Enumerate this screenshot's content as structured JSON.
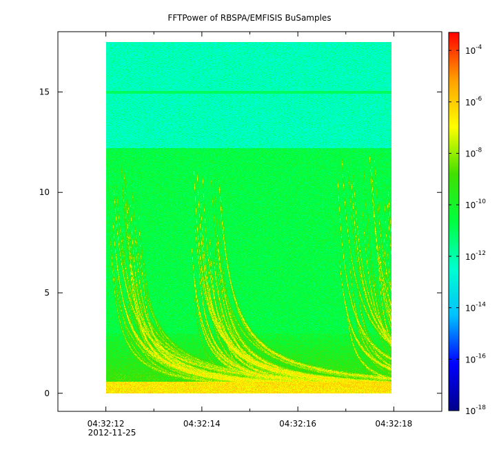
{
  "chart_data": {
    "type": "heatmap",
    "title": "FFTPower of RBSPA/EMFISIS  BuSamples",
    "xlabel": "",
    "ylabel": "",
    "x_ticks": [
      {
        "value": 0,
        "label": "04:32:12",
        "sublabel": "2012-11-25"
      },
      {
        "value": 2,
        "label": "04:32:14",
        "sublabel": ""
      },
      {
        "value": 4,
        "label": "04:32:16",
        "sublabel": ""
      },
      {
        "value": 6,
        "label": "04:32:18",
        "sublabel": ""
      }
    ],
    "x_minor_ticks": [
      -1,
      1,
      3,
      5,
      7
    ],
    "xlim": [
      -1,
      7
    ],
    "y_ticks": [
      0,
      5,
      10,
      15
    ],
    "ylim": [
      -0.9,
      18.0
    ],
    "data_extent": {
      "x": [
        0,
        5.95
      ],
      "y": [
        0,
        17.5
      ]
    },
    "colorbar": {
      "scale": "log",
      "range": [
        -18,
        -3.3
      ],
      "ticks": [
        {
          "exponent": -4,
          "base": "10",
          "exp_label": "-4"
        },
        {
          "exponent": -6,
          "base": "10",
          "exp_label": "-6"
        },
        {
          "exponent": -8,
          "base": "10",
          "exp_label": "-8"
        },
        {
          "exponent": -10,
          "base": "10",
          "exp_label": "-10"
        },
        {
          "exponent": -12,
          "base": "10",
          "exp_label": "-12"
        },
        {
          "exponent": -14,
          "base": "10",
          "exp_label": "-14"
        },
        {
          "exponent": -16,
          "base": "10",
          "exp_label": "-16"
        },
        {
          "exponent": -18,
          "base": "10",
          "exp_label": "-18"
        }
      ],
      "colors": [
        "#00008b",
        "#0000ff",
        "#00bfff",
        "#00ffd0",
        "#00ff40",
        "#40e000",
        "#ffff00",
        "#ff9f00",
        "#ff0000"
      ]
    },
    "features": {
      "upper_band": {
        "y": [
          12.2,
          17.5
        ],
        "level": -12.2
      },
      "lower_band": {
        "y": [
          0,
          12.2
        ],
        "level": -10.6
      },
      "line_at_15": {
        "y": 15.0,
        "level": -11.0
      },
      "low_band": {
        "y": [
          0,
          0.6
        ],
        "level": -6.5
      }
    }
  }
}
